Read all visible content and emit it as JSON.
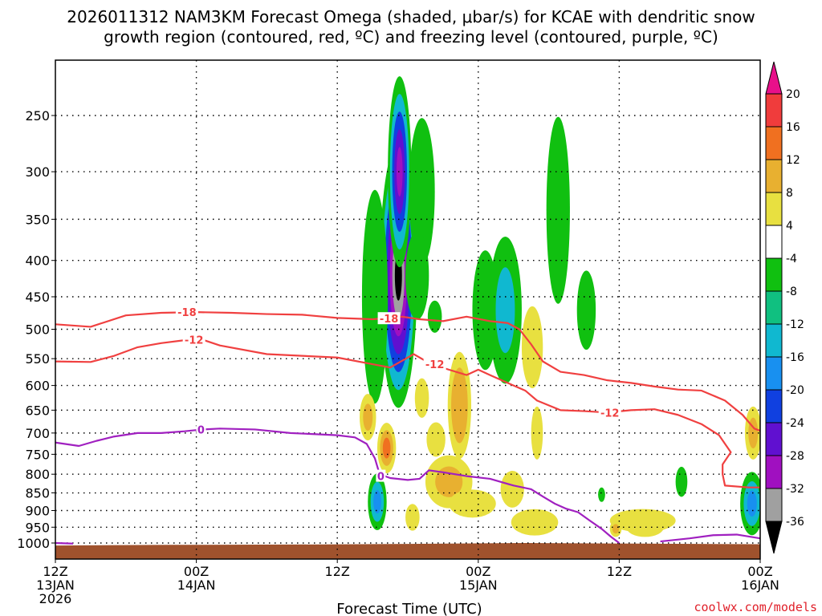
{
  "chart_data": {
    "type": "heatmap",
    "title_line1": "2026011312 NAM3KM Forecast Omega (shaded, μbar/s) for KCAE with dendritic snow",
    "title_line2": "growth region (contoured, red, ºC) and freezing level (contoured, purple, ºC)",
    "xlabel": "Forecast Time (UTC)",
    "ylabel": "",
    "x_unit": "hours since 2026-01-13 12Z",
    "xlim": [
      0,
      60
    ],
    "x_ticks": [
      {
        "hour": 0,
        "lines": [
          "12Z",
          "13JAN",
          "2026"
        ]
      },
      {
        "hour": 12,
        "lines": [
          "00Z",
          "14JAN"
        ]
      },
      {
        "hour": 24,
        "lines": [
          "12Z"
        ]
      },
      {
        "hour": 36,
        "lines": [
          "00Z",
          "15JAN"
        ]
      },
      {
        "hour": 48,
        "lines": [
          "12Z"
        ]
      },
      {
        "hour": 60,
        "lines": [
          "00Z",
          "16JAN"
        ]
      }
    ],
    "y_unit": "hPa",
    "y_ticks": [
      250,
      300,
      350,
      400,
      450,
      500,
      550,
      600,
      650,
      700,
      750,
      800,
      850,
      900,
      950,
      1000
    ],
    "ylim": [
      1025,
      200
    ],
    "grid": true,
    "colorbar": {
      "label_values": [
        20,
        16,
        12,
        8,
        4,
        -4,
        -8,
        -12,
        -16,
        -20,
        -24,
        -28,
        -32,
        -36
      ],
      "bins": [
        {
          "range": ">20",
          "color": "#e8108a"
        },
        {
          "range": "16 to 20",
          "color": "#f03c3c"
        },
        {
          "range": "12 to 16",
          "color": "#f07020"
        },
        {
          "range": "8 to 12",
          "color": "#e8b030"
        },
        {
          "range": "4 to 8",
          "color": "#e8e040"
        },
        {
          "range": "-4 to 4",
          "color": "#ffffff"
        },
        {
          "range": "-8 to -4",
          "color": "#10c010"
        },
        {
          "range": "-12 to -8",
          "color": "#10c080"
        },
        {
          "range": "-16 to -12",
          "color": "#10b8d0"
        },
        {
          "range": "-20 to -16",
          "color": "#1890f0"
        },
        {
          "range": "-24 to -20",
          "color": "#1040e0"
        },
        {
          "range": "-28 to -24",
          "color": "#6010d0"
        },
        {
          "range": "-32 to -28",
          "color": "#a010c0"
        },
        {
          "range": "-36 to -32",
          "color": "#a0a0a0"
        },
        {
          "range": "<-36",
          "color": "#000000"
        }
      ]
    },
    "omega_blobs": [
      {
        "name": "main-updraft",
        "hour": 29.2,
        "p": 420,
        "dh": 1.6,
        "dp": 170,
        "levels": [
          -6,
          -14,
          -20,
          -26,
          -30,
          -34,
          -38
        ]
      },
      {
        "name": "upper-plume",
        "hour": 29.3,
        "p": 300,
        "dh": 1.0,
        "dp": 90,
        "levels": [
          -6,
          -14,
          -20,
          -26,
          -30
        ]
      },
      {
        "name": "left-flank",
        "hour": 27.2,
        "p": 450,
        "dh": 1.1,
        "dp": 150,
        "levels": [
          -6
        ]
      },
      {
        "name": "right-flank",
        "hour": 31.2,
        "p": 320,
        "dh": 1.1,
        "dp": 75,
        "levels": [
          -6
        ]
      },
      {
        "name": "right-flank-low",
        "hour": 30.8,
        "p": 420,
        "dh": 1.0,
        "dp": 60,
        "levels": [
          -6
        ]
      },
      {
        "name": "small-green-mid",
        "hour": 32.3,
        "p": 480,
        "dh": 0.6,
        "dp": 25,
        "levels": [
          -6
        ]
      },
      {
        "name": "cell-37h",
        "hour": 36.6,
        "p": 470,
        "dh": 1.1,
        "dp": 90,
        "levels": [
          -6
        ]
      },
      {
        "name": "cell-42h",
        "hour": 42.8,
        "p": 340,
        "dh": 1.0,
        "dp": 100,
        "levels": [
          -6
        ]
      },
      {
        "name": "cell-39h",
        "hour": 38.3,
        "p": 470,
        "dh": 1.4,
        "dp": 110,
        "levels": [
          -6,
          -14
        ]
      },
      {
        "name": "cell-45h",
        "hour": 45.2,
        "p": 470,
        "dh": 0.8,
        "dp": 60,
        "levels": [
          -6
        ]
      },
      {
        "name": "low-updraft-29h",
        "hour": 27.4,
        "p": 875,
        "dh": 0.8,
        "dp": 80,
        "levels": [
          -6,
          -12,
          -18
        ]
      },
      {
        "name": "low-green-53h",
        "hour": 53.3,
        "p": 820,
        "dh": 0.5,
        "dp": 40,
        "levels": [
          -6
        ]
      },
      {
        "name": "low-updraft-59h",
        "hour": 59.3,
        "p": 880,
        "dh": 1.0,
        "dp": 90,
        "levels": [
          -6,
          -12,
          -18
        ]
      },
      {
        "name": "tiny-green-47h",
        "hour": 46.5,
        "p": 855,
        "dh": 0.3,
        "dp": 20,
        "levels": [
          -6
        ]
      },
      {
        "name": "tiny-green-48h",
        "hour": 48.5,
        "p": 930,
        "dh": 0.6,
        "dp": 20,
        "levels": [
          -6
        ]
      },
      {
        "name": "sink-26h",
        "hour": 26.6,
        "p": 665,
        "dh": 0.7,
        "dp": 50,
        "levels": [
          5,
          9
        ]
      },
      {
        "name": "sink-28h",
        "hour": 28.2,
        "p": 735,
        "dh": 0.8,
        "dp": 60,
        "levels": [
          5,
          10,
          13
        ]
      },
      {
        "name": "sink-34h",
        "hour": 34.4,
        "p": 640,
        "dh": 1.0,
        "dp": 110,
        "levels": [
          5,
          9,
          12
        ]
      },
      {
        "name": "sink-33h-low",
        "hour": 33.5,
        "p": 820,
        "dh": 2.0,
        "dp": 70,
        "levels": [
          5,
          9
        ]
      },
      {
        "name": "sink-31h",
        "hour": 31.2,
        "p": 625,
        "dh": 0.6,
        "dp": 40,
        "levels": [
          5
        ]
      },
      {
        "name": "sink-32h-b",
        "hour": 32.4,
        "p": 715,
        "dh": 0.8,
        "dp": 40,
        "levels": [
          5
        ]
      },
      {
        "name": "sink-30h-low",
        "hour": 30.4,
        "p": 920,
        "dh": 0.6,
        "dp": 40,
        "levels": [
          5
        ]
      },
      {
        "name": "sink-35h-low",
        "hour": 35.5,
        "p": 880,
        "dh": 2.0,
        "dp": 40,
        "levels": [
          5
        ]
      },
      {
        "name": "sink-41h",
        "hour": 40.6,
        "p": 530,
        "dh": 0.9,
        "dp": 70,
        "levels": [
          5
        ]
      },
      {
        "name": "sink-41h-low",
        "hour": 41.0,
        "p": 700,
        "dh": 0.5,
        "dp": 60,
        "levels": [
          5
        ]
      },
      {
        "name": "sink-41h-low2",
        "hour": 40.8,
        "p": 935,
        "dh": 2.0,
        "dp": 40,
        "levels": [
          5
        ]
      },
      {
        "name": "sink-39h-low",
        "hour": 38.9,
        "p": 840,
        "dh": 1.0,
        "dp": 50,
        "levels": [
          5
        ]
      },
      {
        "name": "sink-50h",
        "hour": 50.0,
        "p": 930,
        "dh": 2.8,
        "dp": 35,
        "levels": [
          5,
          8
        ]
      },
      {
        "name": "sink-50h-b",
        "hour": 50.2,
        "p": 950,
        "dh": 1.6,
        "dp": 30,
        "levels": [
          5
        ]
      },
      {
        "name": "sink-48h",
        "hour": 47.7,
        "p": 955,
        "dh": 0.5,
        "dp": 25,
        "levels": [
          5,
          9
        ]
      },
      {
        "name": "sink-59h",
        "hour": 59.4,
        "p": 700,
        "dh": 0.7,
        "dp": 60,
        "levels": [
          5,
          9
        ]
      }
    ],
    "contours": [
      {
        "field": "temperature",
        "value": -18,
        "label": "-18",
        "color": "#f04040",
        "points": [
          [
            0,
            492
          ],
          [
            3,
            496
          ],
          [
            6,
            478
          ],
          [
            9,
            474
          ],
          [
            12,
            473
          ],
          [
            15,
            474
          ],
          [
            18,
            476
          ],
          [
            21,
            477
          ],
          [
            24,
            482
          ],
          [
            27,
            484
          ],
          [
            28.5,
            482
          ],
          [
            29.5,
            480
          ],
          [
            31,
            484
          ],
          [
            33,
            487
          ],
          [
            35,
            480
          ],
          [
            37,
            487
          ],
          [
            38.5,
            490
          ],
          [
            39.5,
            500
          ],
          [
            40.5,
            525
          ],
          [
            41.5,
            555
          ],
          [
            43,
            574
          ],
          [
            45,
            580
          ],
          [
            47,
            590
          ],
          [
            49,
            595
          ],
          [
            51,
            602
          ],
          [
            53,
            608
          ],
          [
            55,
            610
          ],
          [
            57,
            630
          ],
          [
            58.5,
            660
          ],
          [
            59.5,
            690
          ],
          [
            60,
            695
          ]
        ],
        "label_at": [
          [
            11.2,
            473
          ],
          [
            28.4,
            483
          ]
        ]
      },
      {
        "field": "temperature",
        "value": -12,
        "label": "-12",
        "color": "#f04040",
        "points": [
          [
            0,
            555
          ],
          [
            3,
            556
          ],
          [
            5,
            545
          ],
          [
            7,
            530
          ],
          [
            9,
            523
          ],
          [
            11,
            518
          ],
          [
            12.5,
            517
          ],
          [
            14,
            527
          ],
          [
            18,
            542
          ],
          [
            21,
            545
          ],
          [
            24,
            548
          ],
          [
            27,
            560
          ],
          [
            28.5,
            566
          ],
          [
            29.5,
            554
          ],
          [
            30.5,
            542
          ],
          [
            32,
            560
          ],
          [
            33.5,
            570
          ],
          [
            35,
            580
          ],
          [
            36,
            570
          ],
          [
            37,
            580
          ],
          [
            38.5,
            595
          ],
          [
            40,
            610
          ],
          [
            41,
            630
          ],
          [
            43,
            650
          ],
          [
            45,
            652
          ],
          [
            47,
            655
          ],
          [
            49,
            650
          ],
          [
            51,
            648
          ],
          [
            53,
            660
          ],
          [
            55,
            680
          ],
          [
            56.5,
            705
          ],
          [
            57.5,
            745
          ],
          [
            56.8,
            775
          ],
          [
            56.8,
            800
          ],
          [
            57,
            830
          ],
          [
            59,
            835
          ],
          [
            60,
            835
          ]
        ],
        "label_at": [
          [
            11.8,
            517
          ],
          [
            32.3,
            560
          ],
          [
            47.2,
            655
          ]
        ]
      },
      {
        "field": "temperature",
        "value": 0,
        "label": "0",
        "color": "#a020c0",
        "points": [
          [
            0,
            722
          ],
          [
            2,
            730
          ],
          [
            3.5,
            718
          ],
          [
            5,
            708
          ],
          [
            7,
            700
          ],
          [
            9,
            700
          ],
          [
            11,
            696
          ],
          [
            12.5,
            692
          ],
          [
            14,
            690
          ],
          [
            17,
            692
          ],
          [
            20,
            700
          ],
          [
            24,
            705
          ],
          [
            25.5,
            710
          ],
          [
            26.5,
            725
          ],
          [
            27.2,
            760
          ],
          [
            27.6,
            800
          ],
          [
            28.5,
            810
          ],
          [
            30,
            815
          ],
          [
            31,
            812
          ],
          [
            31.8,
            790
          ],
          [
            33,
            795
          ],
          [
            35,
            805
          ],
          [
            37,
            812
          ],
          [
            39,
            830
          ],
          [
            40.5,
            840
          ],
          [
            41.5,
            860
          ],
          [
            42.5,
            880
          ],
          [
            43.5,
            895
          ],
          [
            44.5,
            905
          ],
          [
            45.5,
            930
          ],
          [
            46.5,
            955
          ],
          [
            47.3,
            980
          ],
          [
            48,
            1000
          ]
        ],
        "label_at": [
          [
            12.4,
            692
          ],
          [
            27.7,
            805
          ]
        ]
      },
      {
        "field": "temperature",
        "value": 0,
        "label": "",
        "color": "#a020c0",
        "points": [
          [
            51.5,
            995
          ],
          [
            54,
            985
          ],
          [
            56,
            975
          ],
          [
            58,
            973
          ],
          [
            60,
            985
          ]
        ],
        "label_at": []
      },
      {
        "field": "temperature",
        "value": 0,
        "label": "",
        "color": "#a020c0",
        "points": [
          [
            0,
            1000
          ],
          [
            1.5,
            1002
          ]
        ],
        "label_at": []
      }
    ],
    "terrain": {
      "color": "#a0522d",
      "top_p": [
        [
          0,
          1008
        ],
        [
          10,
          1006
        ],
        [
          20,
          1005
        ],
        [
          30,
          1003
        ],
        [
          40,
          1000
        ],
        [
          50,
          1002
        ],
        [
          60,
          1004
        ]
      ],
      "bottom_p": 1025
    }
  },
  "credit": "coolwx.com/models"
}
